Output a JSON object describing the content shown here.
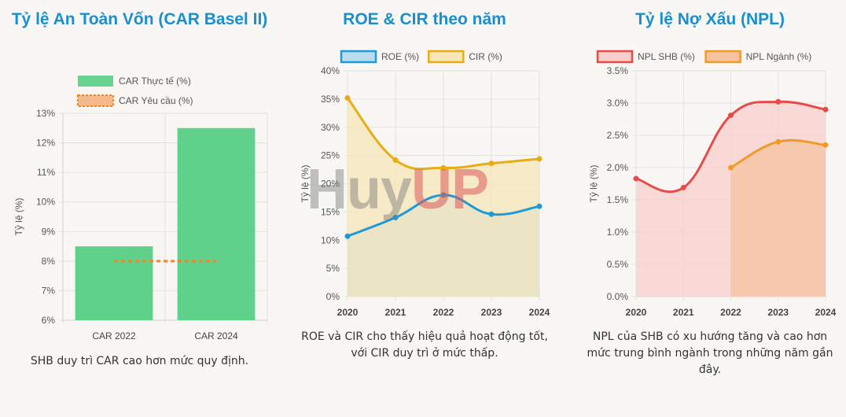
{
  "charts": {
    "car": {
      "title": "Tỷ lệ An Toàn Vốn (CAR Basel II)",
      "caption": "SHB duy trì CAR cao hơn mức quy định."
    },
    "roe": {
      "title": "ROE & CIR theo năm",
      "caption": "ROE và CIR cho thấy hiệu quả hoạt động tốt, với CIR duy trì ở mức thấp."
    },
    "npl": {
      "title": "Tỷ lệ Nợ Xấu (NPL)",
      "caption": "NPL của SHB có xu hướng tăng và cao hơn mức trung bình ngành trong những năm gần đây."
    }
  },
  "watermark": "HuyUP",
  "chart_data": [
    {
      "type": "bar",
      "title": "Tỷ lệ An Toàn Vốn (CAR Basel II)",
      "categories": [
        "CAR 2022",
        "CAR 2024"
      ],
      "ylabel": "Tỷ lệ (%)",
      "ylim": [
        6,
        13
      ],
      "yticks": [
        "6%",
        "7%",
        "8%",
        "9%",
        "10%",
        "11%",
        "12%",
        "13%"
      ],
      "legend_position": "top",
      "series": [
        {
          "name": "CAR Thực tế (%)",
          "values": [
            8.5,
            12.5
          ],
          "color": "#5fd18a"
        },
        {
          "name": "CAR Yêu cầu (%)",
          "values": [
            8,
            8
          ],
          "color": "#f0852d",
          "style": "dashed-line"
        }
      ]
    },
    {
      "type": "area",
      "title": "ROE & CIR theo năm",
      "x": [
        "2020",
        "2021",
        "2022",
        "2023",
        "2024"
      ],
      "ylabel": "Tỷ lệ (%)",
      "ylim": [
        0,
        40
      ],
      "yticks": [
        "0%",
        "5%",
        "10%",
        "15%",
        "20%",
        "25%",
        "30%",
        "35%",
        "40%"
      ],
      "legend_position": "top",
      "series": [
        {
          "name": "ROE (%)",
          "values": [
            10.7,
            14,
            18,
            14.6,
            16
          ],
          "color": "#1e9ad6",
          "fill": "#b9dcef"
        },
        {
          "name": "CIR (%)",
          "values": [
            35.2,
            24.2,
            22.8,
            23.6,
            24.4
          ],
          "color": "#e8ad14",
          "fill": "#f6e6b8"
        }
      ]
    },
    {
      "type": "area",
      "title": "Tỷ lệ Nợ Xấu (NPL)",
      "x": [
        "2020",
        "2021",
        "2022",
        "2023",
        "2024"
      ],
      "ylabel": "Tỷ lệ (%)",
      "ylim": [
        0,
        3.5
      ],
      "yticks": [
        "0.0%",
        "0.5%",
        "1.0%",
        "1.5%",
        "2.0%",
        "2.5%",
        "3.0%",
        "3.5%"
      ],
      "legend_position": "top",
      "series": [
        {
          "name": "NPL SHB (%)",
          "values": [
            1.83,
            1.69,
            2.81,
            3.02,
            2.9
          ],
          "color": "#e84a4a",
          "fill": "#f8cfcc"
        },
        {
          "name": "NPL Ngành (%)",
          "values": [
            null,
            null,
            2.0,
            2.4,
            2.35
          ],
          "color": "#f09a2a",
          "fill": "#f6c3a0"
        }
      ]
    }
  ]
}
